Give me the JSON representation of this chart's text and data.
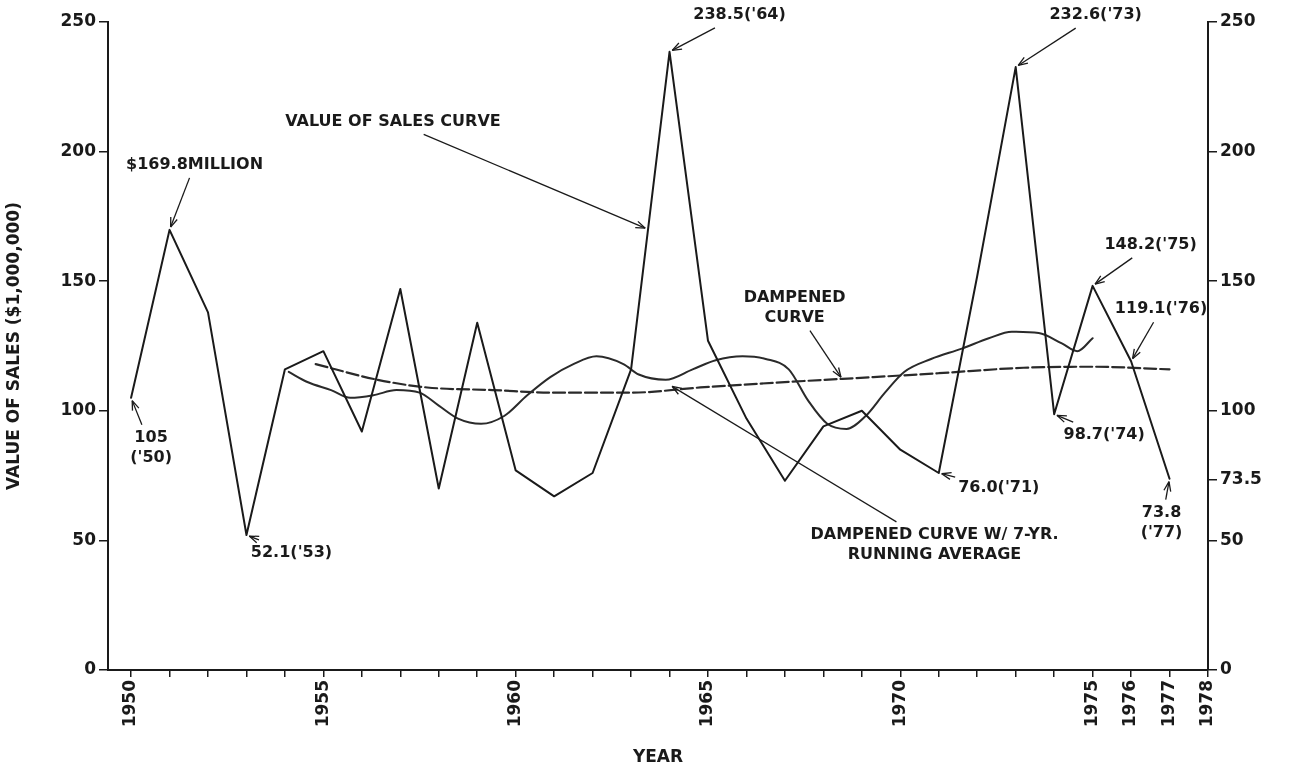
{
  "chart_data": {
    "type": "line",
    "xlabel": "YEAR",
    "ylabel": "VALUE OF SALES ($1,000,000)",
    "marker": "none",
    "grid": false,
    "legend": false,
    "line_style": "solid",
    "xlim": [
      1949.4,
      1978
    ],
    "xticks": [
      1950,
      {
        "value": 1951,
        "label": null
      },
      {
        "value": 1952,
        "label": null
      },
      {
        "value": 1953,
        "label": null
      },
      {
        "value": 1954,
        "label": null
      },
      1955,
      {
        "value": 1956,
        "label": null
      },
      {
        "value": 1957,
        "label": null
      },
      {
        "value": 1958,
        "label": null
      },
      {
        "value": 1959,
        "label": null
      },
      1960,
      {
        "value": 1961,
        "label": null
      },
      {
        "value": 1962,
        "label": null
      },
      {
        "value": 1963,
        "label": null
      },
      {
        "value": 1964,
        "label": null
      },
      1965,
      {
        "value": 1966,
        "label": null
      },
      {
        "value": 1967,
        "label": null
      },
      {
        "value": 1968,
        "label": null
      },
      {
        "value": 1969,
        "label": null
      },
      1970,
      {
        "value": 1971,
        "label": null
      },
      {
        "value": 1972,
        "label": null
      },
      {
        "value": 1973,
        "label": null
      },
      {
        "value": 1974,
        "label": null
      },
      1975,
      1976,
      1977,
      1978
    ],
    "ylim": [
      0,
      250
    ],
    "yticks": [
      0,
      50,
      100,
      150,
      200,
      250
    ],
    "y2lim": [
      0,
      250
    ],
    "y2ticks": [
      0,
      50,
      73.5,
      100,
      150,
      200,
      250
    ],
    "series": [
      {
        "color": "#1a1a1a",
        "x": [
          1950,
          1951,
          1952,
          1953,
          1954,
          1955,
          1956,
          1957,
          1958,
          1959,
          1960,
          1961,
          1962,
          1963,
          1964,
          1965,
          1966,
          1967,
          1968,
          1969,
          1970,
          1971,
          1972,
          1973,
          1974,
          1975,
          1976,
          1977
        ],
        "values": [
          105,
          169.8,
          138,
          52.1,
          116,
          123,
          92,
          147,
          70,
          134,
          77,
          67,
          76,
          116,
          238.5,
          127,
          97,
          73,
          94,
          100,
          85,
          76.0,
          152,
          232.6,
          98.7,
          148.2,
          119.1,
          73.8
        ]
      },
      {
        "color": "#2a2a2a",
        "x": [
          1954.1,
          1954.6,
          1955.2,
          1955.7,
          1956.3,
          1956.9,
          1957.5,
          1958.0,
          1958.5,
          1959.1,
          1959.7,
          1960.3,
          1960.9,
          1961.5,
          1962.1,
          1962.8,
          1963.2,
          1963.9,
          1964.6,
          1965.2,
          1965.9,
          1966.5,
          1967.1,
          1967.6,
          1968.1,
          1968.6,
          1969.1,
          1969.6,
          1970.1,
          1970.8,
          1971.6,
          1972.3,
          1972.9,
          1973.6,
          1974.2,
          1974.6,
          1975.0
        ],
        "values": [
          115,
          111,
          108,
          105,
          106,
          108,
          107,
          102,
          97,
          95,
          98,
          106,
          113,
          118,
          121,
          118,
          114,
          112,
          116,
          119.5,
          121,
          120,
          116,
          104,
          95,
          93,
          98,
          107,
          115,
          120,
          124,
          128,
          130.5,
          130,
          126,
          123,
          128
        ]
      },
      {
        "color": "#2a2a2a",
        "line_style": "dashed",
        "x": [
          1954.8,
          1956.4,
          1957.7,
          1959.4,
          1961,
          1963,
          1964.8,
          1967.5,
          1969.3,
          1971,
          1973.2,
          1975,
          1977
        ],
        "values": [
          118,
          112,
          109,
          108,
          107,
          107,
          109,
          111.5,
          113,
          114.5,
          116.6,
          117,
          116
        ]
      }
    ],
    "annotations": [
      {
        "text": "105 ('50)",
        "x": 1950,
        "y": 105
      },
      {
        "text": "$169.8MILLION",
        "x": 1951,
        "y": 169.8
      },
      {
        "text": "52.1('53)",
        "x": 1953,
        "y": 52.1
      },
      {
        "text": "VALUE OF SALES CURVE",
        "x": 1963.44,
        "y": 170
      },
      {
        "text": "238.5('64)",
        "x": 1964,
        "y": 238.5
      },
      {
        "text": "232.6('73)",
        "x": 1973,
        "y": 232.6
      },
      {
        "text": "DAMPENED CURVE",
        "x": 1968.5,
        "y": 112
      },
      {
        "text": "148.2('75)",
        "x": 1975,
        "y": 148.2
      },
      {
        "text": "119.1('76)",
        "x": 1976,
        "y": 119.1
      },
      {
        "text": "98.7('74)",
        "x": 1974,
        "y": 98.7
      },
      {
        "text": "76.0('71)",
        "x": 1971,
        "y": 76.0
      },
      {
        "text": "DAMPENED CURVE W/ 7-YR. RUNNING AVERAGE",
        "x": 1964,
        "y": 110
      },
      {
        "text": "73.8 ('77)",
        "x": 1977,
        "y": 73.8
      }
    ]
  }
}
